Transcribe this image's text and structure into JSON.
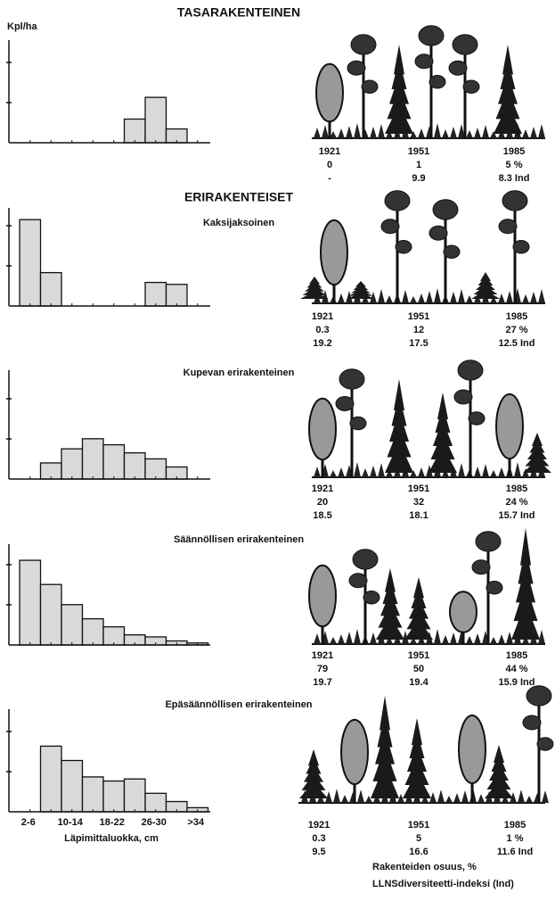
{
  "title": "TASARAKENTEINEN",
  "y_label": "Kpl/ha",
  "section": "ERIRAKENTEISET",
  "x_label": "Läpimittaluokka, cm",
  "footer": [
    "Rakenteiden osuus, %",
    "LLNSdiversiteetti-indeksi (Ind)"
  ],
  "chart_data": [
    {
      "type": "bar",
      "categories": [
        null,
        null,
        null,
        null,
        null,
        null,
        null,
        null,
        null
      ],
      "values": [
        0,
        0,
        0,
        0,
        0,
        0.6,
        1.15,
        0.35,
        0
      ],
      "color": "#d9d9d9",
      "ylim": [
        0,
        2.6
      ]
    },
    {
      "type": "bar",
      "subtitle": "Kaksijaksoinen",
      "categories": [
        null,
        null,
        null,
        null,
        null,
        null,
        null,
        null,
        null
      ],
      "values": [
        2.2,
        0.85,
        0,
        0,
        0,
        0,
        0.6,
        0.55,
        0
      ],
      "color": "#d9d9d9",
      "ylim": [
        0,
        2.5
      ]
    },
    {
      "type": "bar",
      "subtitle": "Kupevan erirakenteinen",
      "categories": [
        null,
        null,
        null,
        null,
        null,
        null,
        null,
        null,
        null
      ],
      "values": [
        0,
        0.4,
        0.75,
        1.0,
        0.85,
        0.65,
        0.5,
        0.3,
        0
      ],
      "color": "#d9d9d9",
      "ylim": [
        0,
        2.7
      ]
    },
    {
      "type": "bar",
      "subtitle": "Säännöllisen erirakenteinen",
      "categories": [
        null,
        null,
        null,
        null,
        null,
        null,
        null,
        null,
        null
      ],
      "values": [
        2.1,
        1.5,
        1.0,
        0.65,
        0.45,
        0.25,
        0.2,
        0.1,
        0.05
      ],
      "color": "#d9d9d9",
      "ylim": [
        0,
        2.5
      ]
    },
    {
      "type": "bar",
      "subtitle": "Epäsäännöllisen erirakenteinen",
      "categories": [
        "2-6",
        null,
        "10-14",
        null,
        "18-22",
        null,
        "26-30",
        null,
        ">34"
      ],
      "values": [
        0,
        1.6,
        1.25,
        0.85,
        0.75,
        0.8,
        0.45,
        0.25,
        0.1
      ],
      "color": "#d9d9d9",
      "ylim": [
        0,
        2.5
      ]
    }
  ],
  "stands": [
    {
      "years": [
        "1921",
        "1951",
        "1985"
      ],
      "share": [
        "0",
        "1",
        "5 %"
      ],
      "index": [
        "-",
        "9.9",
        "8.3 Ind"
      ]
    },
    {
      "years": [
        "1921",
        "1951",
        "1985"
      ],
      "share": [
        "0.3",
        "12",
        "27 %"
      ],
      "index": [
        "19.2",
        "17.5",
        "12.5 Ind"
      ]
    },
    {
      "years": [
        "1921",
        "1951",
        "1985"
      ],
      "share": [
        "20",
        "32",
        "24 %"
      ],
      "index": [
        "18.5",
        "18.1",
        "15.7 Ind"
      ]
    },
    {
      "years": [
        "1921",
        "1951",
        "1985"
      ],
      "share": [
        "79",
        "50",
        "44 %"
      ],
      "index": [
        "19.7",
        "19.4",
        "15.9 Ind"
      ]
    },
    {
      "years": [
        "1921",
        "1951",
        "1985"
      ],
      "share": [
        "0.3",
        "5",
        "1 %"
      ],
      "index": [
        "9.5",
        "16.6",
        "11.6  Ind"
      ]
    }
  ]
}
